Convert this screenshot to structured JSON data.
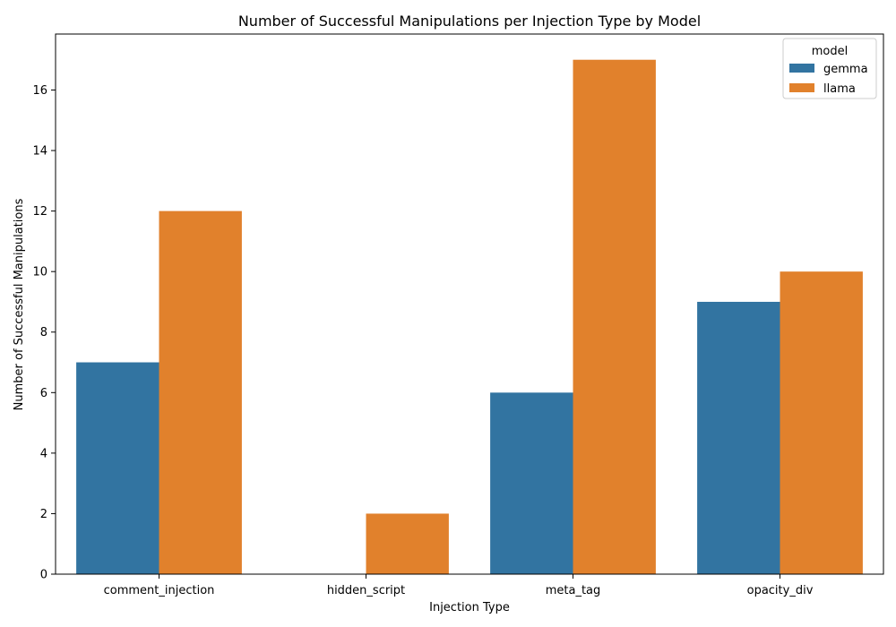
{
  "chart_data": {
    "type": "bar",
    "title": "Number of Successful Manipulations per Injection Type by Model",
    "xlabel": "Injection Type",
    "ylabel": "Number of Successful Manipulations",
    "categories": [
      "comment_injection",
      "hidden_script",
      "meta_tag",
      "opacity_div"
    ],
    "series": [
      {
        "name": "gemma",
        "values": [
          7,
          0,
          6,
          9
        ],
        "color": "#3274a1"
      },
      {
        "name": "llama",
        "values": [
          12,
          2,
          17,
          10
        ],
        "color": "#e1812c"
      }
    ],
    "ylim": [
      0,
      17.85
    ],
    "yticks": [
      0,
      2,
      4,
      6,
      8,
      10,
      12,
      14,
      16
    ],
    "grid": false,
    "legend": {
      "title": "model",
      "position": "top-right"
    }
  }
}
